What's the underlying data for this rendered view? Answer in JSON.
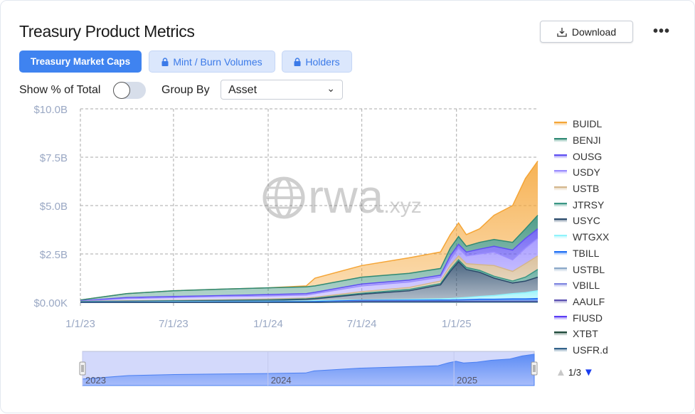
{
  "header": {
    "title": "Treasury Product Metrics",
    "download_label": "Download",
    "more_icon": "more-horizontal-icon"
  },
  "tabs": [
    {
      "label": "Treasury Market Caps",
      "active": true,
      "locked": false
    },
    {
      "label": "Mint / Burn Volumes",
      "active": false,
      "locked": true
    },
    {
      "label": "Holders",
      "active": false,
      "locked": true
    }
  ],
  "controls": {
    "show_pct_label": "Show % of Total",
    "show_pct_on": false,
    "group_by_label": "Group By",
    "group_by_value": "Asset"
  },
  "watermark": "rwa.xyz",
  "legend_pager": {
    "text": "1/3",
    "up_enabled": false,
    "down_enabled": true
  },
  "navigator": {
    "labels": [
      "2023",
      "2024",
      "2025"
    ]
  },
  "chart_data": {
    "type": "area",
    "stacked": true,
    "title": "",
    "xlabel": "",
    "ylabel": "",
    "ylim": [
      0,
      10
    ],
    "y_unit": "$B",
    "y_ticks": [
      "$0.00K",
      "$2.5B",
      "$5.0B",
      "$7.5B",
      "$10.0B"
    ],
    "y_tick_values": [
      0,
      2.5,
      5,
      7.5,
      10
    ],
    "x_ticks": [
      "1/1/23",
      "7/1/23",
      "1/1/24",
      "7/1/24",
      "1/1/25"
    ],
    "x_tick_dates": [
      "2023-01-01",
      "2023-07-01",
      "2024-01-01",
      "2024-07-01",
      "2025-01-01"
    ],
    "grid": true,
    "legend_placement": "right",
    "x": [
      "2023-01-01",
      "2023-04-01",
      "2023-07-01",
      "2023-10-01",
      "2024-01-01",
      "2024-03-15",
      "2024-04-01",
      "2024-07-01",
      "2024-10-01",
      "2024-12-01",
      "2024-12-20",
      "2025-01-05",
      "2025-01-20",
      "2025-02-15",
      "2025-03-15",
      "2025-04-20",
      "2025-05-15",
      "2025-06-08"
    ],
    "series": [
      {
        "name": "BUIDL",
        "color": "#f5a536",
        "values": [
          0,
          0,
          0,
          0,
          0,
          0.05,
          0.4,
          0.6,
          0.8,
          0.85,
          0.7,
          0.7,
          0.6,
          0.7,
          1.25,
          1.9,
          2.6,
          2.8
        ]
      },
      {
        "name": "BENJI",
        "color": "#2f8a74",
        "values": [
          0.04,
          0.2,
          0.3,
          0.33,
          0.35,
          0.35,
          0.33,
          0.35,
          0.35,
          0.35,
          0.4,
          0.4,
          0.3,
          0.35,
          0.35,
          0.4,
          0.5,
          0.7
        ]
      },
      {
        "name": "OUSG",
        "color": "#5e4ff2",
        "values": [
          0.02,
          0.05,
          0.05,
          0.05,
          0.07,
          0.07,
          0.07,
          0.1,
          0.1,
          0.1,
          0.2,
          0.2,
          0.2,
          0.25,
          0.3,
          0.5,
          0.5,
          0.5
        ]
      },
      {
        "name": "USDY",
        "color": "#9a8cff",
        "values": [
          0.01,
          0.12,
          0.15,
          0.17,
          0.16,
          0.16,
          0.19,
          0.3,
          0.28,
          0.2,
          0.3,
          0.4,
          0.4,
          0.55,
          0.7,
          0.6,
          0.8,
          0.9
        ]
      },
      {
        "name": "USTB",
        "color": "#d4b68c",
        "values": [
          0.01,
          0.02,
          0.02,
          0.03,
          0.04,
          0.04,
          0.05,
          0.08,
          0.1,
          0.13,
          0.2,
          0.2,
          0.2,
          0.3,
          0.55,
          0.5,
          0.7,
          0.7
        ]
      },
      {
        "name": "JTRSY",
        "color": "#3a9684",
        "values": [
          0.01,
          0.01,
          0.02,
          0.02,
          0.03,
          0.03,
          0.03,
          0.05,
          0.07,
          0.07,
          0.1,
          0.1,
          0.1,
          0.1,
          0.1,
          0.1,
          0.2,
          0.4
        ]
      },
      {
        "name": "USYC",
        "color": "#2b4a6b",
        "values": [
          0.01,
          0.02,
          0.02,
          0.03,
          0.04,
          0.08,
          0.1,
          0.3,
          0.45,
          0.72,
          1.4,
          1.88,
          1.45,
          1.25,
          0.9,
          0.55,
          0.6,
          0.7
        ]
      },
      {
        "name": "WTGXX",
        "color": "#8ff3fb",
        "values": [
          0.01,
          0.015,
          0.02,
          0.025,
          0.03,
          0.035,
          0.04,
          0.02,
          0.04,
          0.06,
          0.08,
          0.09,
          0.11,
          0.14,
          0.19,
          0.27,
          0.32,
          0.4
        ]
      },
      {
        "name": "TBILL",
        "color": "#1f6ff5",
        "values": [
          0.01,
          0.015,
          0.02,
          0.025,
          0.03,
          0.035,
          0.04,
          0.04,
          0.05,
          0.06,
          0.06,
          0.07,
          0.08,
          0.1,
          0.1,
          0.12,
          0.12,
          0.14
        ]
      },
      {
        "name": "USTBL",
        "color": "#8aa8c8",
        "values": [
          0,
          0,
          0,
          0,
          0,
          0,
          0,
          0.01,
          0.01,
          0.01,
          0.01,
          0.01,
          0.01,
          0.01,
          0.01,
          0.01,
          0.01,
          0.01
        ]
      },
      {
        "name": "VBILL",
        "color": "#7f86e0",
        "values": [
          0,
          0,
          0,
          0,
          0,
          0,
          0,
          0.01,
          0.01,
          0.01,
          0.01,
          0.01,
          0.01,
          0.01,
          0.01,
          0.01,
          0.01,
          0.01
        ]
      },
      {
        "name": "AAULF",
        "color": "#5a4fb0",
        "values": [
          0,
          0,
          0,
          0,
          0,
          0,
          0,
          0.01,
          0.01,
          0.01,
          0.01,
          0.01,
          0.01,
          0.01,
          0.01,
          0.01,
          0.01,
          0.01
        ]
      },
      {
        "name": "FIUSD",
        "color": "#5b3cf5",
        "values": [
          0,
          0,
          0,
          0,
          0,
          0,
          0,
          0.01,
          0.01,
          0.01,
          0.01,
          0.01,
          0.01,
          0.01,
          0.01,
          0.01,
          0.01,
          0.01
        ]
      },
      {
        "name": "XTBT",
        "color": "#1e4a3a",
        "values": [
          0,
          0,
          0,
          0,
          0,
          0,
          0,
          0.01,
          0.01,
          0.01,
          0.01,
          0.01,
          0.01,
          0.01,
          0.01,
          0.01,
          0.01,
          0.01
        ]
      },
      {
        "name": "USFR.d",
        "color": "#33628a",
        "values": [
          0,
          0,
          0,
          0,
          0,
          0,
          0,
          0.01,
          0.01,
          0.01,
          0.01,
          0.01,
          0.01,
          0.01,
          0.01,
          0.01,
          0.01,
          0.01
        ]
      }
    ]
  }
}
